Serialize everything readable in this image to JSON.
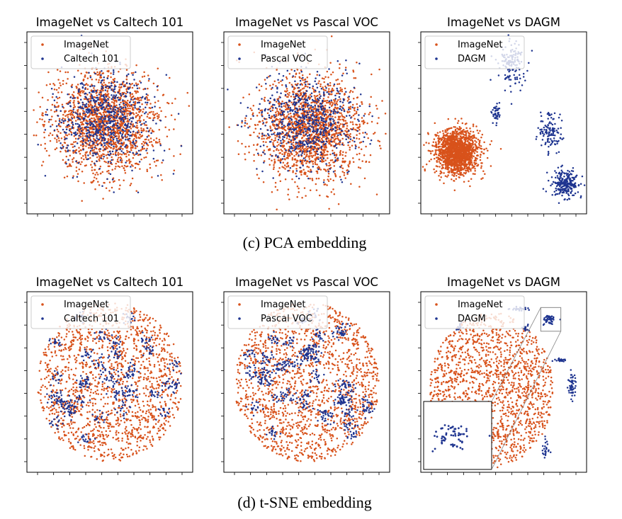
{
  "figure": {
    "caption_pca": "(c) PCA embedding",
    "caption_tsne": "(d) t-SNE embedding"
  },
  "colors": {
    "imagenet": "#d8521b",
    "other": "#1f3590"
  },
  "chart_data": [
    {
      "type": "scatter",
      "embedding": "PCA",
      "title": "ImageNet vs Caltech 101",
      "legend": [
        "ImageNet",
        "Caltech 101"
      ],
      "legend_position": "upper-left",
      "grid": false,
      "xlim": [
        0,
        1
      ],
      "ylim": [
        0,
        1
      ],
      "series": [
        {
          "name": "ImageNet",
          "color": "#d8521b",
          "distribution": {
            "shape": "gaussian",
            "center": [
              0.47,
              0.5
            ],
            "spread": [
              0.17,
              0.15
            ],
            "points": 1700
          }
        },
        {
          "name": "Caltech 101",
          "color": "#1f3590",
          "distribution": {
            "shape": "gaussian",
            "center": [
              0.47,
              0.52
            ],
            "spread": [
              0.16,
              0.14
            ],
            "points": 650
          }
        }
      ]
    },
    {
      "type": "scatter",
      "embedding": "PCA",
      "title": "ImageNet vs Pascal VOC",
      "legend": [
        "ImageNet",
        "Pascal VOC"
      ],
      "legend_position": "upper-left",
      "grid": false,
      "xlim": [
        0,
        1
      ],
      "ylim": [
        0,
        1
      ],
      "series": [
        {
          "name": "ImageNet",
          "color": "#d8521b",
          "distribution": {
            "shape": "gaussian",
            "center": [
              0.52,
              0.47
            ],
            "spread": [
              0.17,
              0.15
            ],
            "points": 1700
          }
        },
        {
          "name": "Pascal VOC",
          "color": "#1f3590",
          "distribution": {
            "shape": "gaussian",
            "center": [
              0.5,
              0.5
            ],
            "spread": [
              0.16,
              0.14
            ],
            "points": 650
          }
        }
      ]
    },
    {
      "type": "scatter",
      "embedding": "PCA",
      "title": "ImageNet vs DAGM",
      "legend": [
        "ImageNet",
        "DAGM"
      ],
      "legend_position": "upper-left",
      "grid": false,
      "xlim": [
        0,
        1
      ],
      "ylim": [
        0,
        1
      ],
      "series": [
        {
          "name": "ImageNet",
          "color": "#d8521b",
          "distribution": {
            "shape": "gaussian",
            "center": [
              0.2,
              0.33
            ],
            "spread": [
              0.07,
              0.065
            ],
            "points": 1600
          }
        },
        {
          "name": "DAGM",
          "color": "#1f3590",
          "distribution": {
            "shape": "clusters",
            "clusters": [
              {
                "center": [
                  0.55,
                  0.85
                ],
                "spread": [
                  0.04,
                  0.07
                ],
                "points": 140
              },
              {
                "center": [
                  0.45,
                  0.55
                ],
                "spread": [
                  0.015,
                  0.03
                ],
                "points": 40
              },
              {
                "center": [
                  0.81,
                  0.45
                ],
                "spread": [
                  0.04,
                  0.06
                ],
                "points": 120
              },
              {
                "center": [
                  0.9,
                  0.14
                ],
                "spread": [
                  0.045,
                  0.04
                ],
                "points": 250
              }
            ]
          }
        }
      ]
    },
    {
      "type": "scatter",
      "embedding": "t-SNE",
      "title": "ImageNet vs Caltech 101",
      "legend": [
        "ImageNet",
        "Caltech 101"
      ],
      "legend_position": "upper-left",
      "grid": false,
      "xlim": [
        0,
        1
      ],
      "ylim": [
        0,
        1
      ],
      "series": [
        {
          "name": "ImageNet",
          "color": "#d8521b",
          "distribution": {
            "shape": "disk",
            "center": [
              0.5,
              0.5
            ],
            "radius": [
              0.47,
              0.47
            ],
            "points": 1500
          }
        },
        {
          "name": "Caltech 101",
          "color": "#1f3590",
          "distribution": {
            "shape": "disk-clumps",
            "center": [
              0.5,
              0.5
            ],
            "radius": [
              0.47,
              0.47
            ],
            "clumps": 35,
            "points": 520
          }
        }
      ]
    },
    {
      "type": "scatter",
      "embedding": "t-SNE",
      "title": "ImageNet vs Pascal VOC",
      "legend": [
        "ImageNet",
        "Pascal VOC"
      ],
      "legend_position": "upper-left",
      "grid": false,
      "xlim": [
        0,
        1
      ],
      "ylim": [
        0,
        1
      ],
      "series": [
        {
          "name": "ImageNet",
          "color": "#d8521b",
          "distribution": {
            "shape": "disk",
            "center": [
              0.5,
              0.5
            ],
            "radius": [
              0.47,
              0.47
            ],
            "points": 1500
          }
        },
        {
          "name": "Pascal VOC",
          "color": "#1f3590",
          "distribution": {
            "shape": "disk-clumps",
            "center": [
              0.5,
              0.5
            ],
            "radius": [
              0.47,
              0.47
            ],
            "clumps": 40,
            "points": 620
          }
        }
      ]
    },
    {
      "type": "scatter",
      "embedding": "t-SNE",
      "title": "ImageNet vs DAGM",
      "legend": [
        "ImageNet",
        "DAGM"
      ],
      "legend_position": "upper-left",
      "grid": false,
      "xlim": [
        0,
        1
      ],
      "ylim": [
        0,
        1
      ],
      "inset": {
        "zoom_region": [
          0.74,
          0.8,
          0.87,
          0.94
        ],
        "location": "lower-left"
      },
      "series": [
        {
          "name": "ImageNet",
          "color": "#d8521b",
          "distribution": {
            "shape": "disk",
            "center": [
              0.42,
              0.45
            ],
            "radius": [
              0.4,
              0.46
            ],
            "points": 1600
          }
        },
        {
          "name": "DAGM",
          "color": "#1f3590",
          "distribution": {
            "shape": "clusters",
            "clusters": [
              {
                "center": [
                  0.8,
                  0.87
                ],
                "spread": [
                  0.02,
                  0.015
                ],
                "points": 60
              },
              {
                "center": [
                  0.6,
                  0.93
                ],
                "spread": [
                  0.03,
                  0.005
                ],
                "points": 25
              },
              {
                "center": [
                  0.65,
                  0.82
                ],
                "spread": [
                  0.015,
                  0.01
                ],
                "points": 15
              },
              {
                "center": [
                  0.86,
                  0.63
                ],
                "spread": [
                  0.02,
                  0.005
                ],
                "points": 25
              },
              {
                "center": [
                  0.94,
                  0.48
                ],
                "spread": [
                  0.012,
                  0.04
                ],
                "points": 50
              },
              {
                "center": [
                  0.77,
                  0.1
                ],
                "spread": [
                  0.01,
                  0.03
                ],
                "points": 25
              },
              {
                "center": [
                  0.22,
                  0.82
                ],
                "spread": [
                  0.015,
                  0.01
                ],
                "points": 12
              }
            ]
          }
        }
      ]
    }
  ]
}
